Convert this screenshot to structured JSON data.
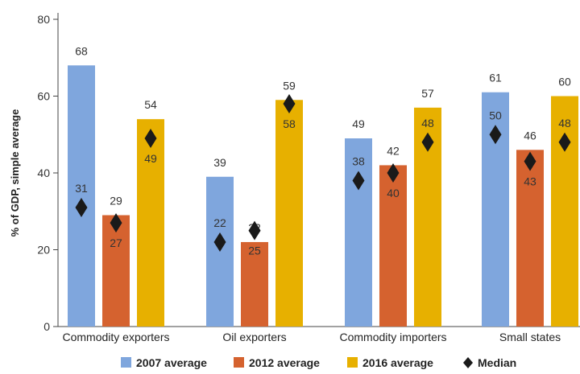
{
  "chart_data": {
    "type": "bar",
    "title": "",
    "ylabel": "% of GDP, simple average",
    "xlabel": "",
    "ylim": [
      0,
      80
    ],
    "yticks": [
      0,
      20,
      40,
      60,
      80
    ],
    "grid": false,
    "legend_position": "bottom",
    "categories": [
      "Commodity exporters",
      "Oil exporters",
      "Commodity importers",
      "Small states"
    ],
    "series": [
      {
        "name": "2007 average",
        "color": "#7FA6DD",
        "values": [
          68,
          39,
          49,
          61
        ],
        "median": [
          31,
          22,
          38,
          50
        ]
      },
      {
        "name": "2012 average",
        "color": "#D5622F",
        "values": [
          29,
          22,
          42,
          46
        ],
        "median": [
          27,
          25,
          40,
          43
        ]
      },
      {
        "name": "2016 average",
        "color": "#E7B000",
        "values": [
          54,
          59,
          57,
          60
        ],
        "median": [
          49,
          58,
          48,
          48
        ]
      }
    ],
    "median_label": "Median",
    "median_color": "#1a1a1a"
  }
}
